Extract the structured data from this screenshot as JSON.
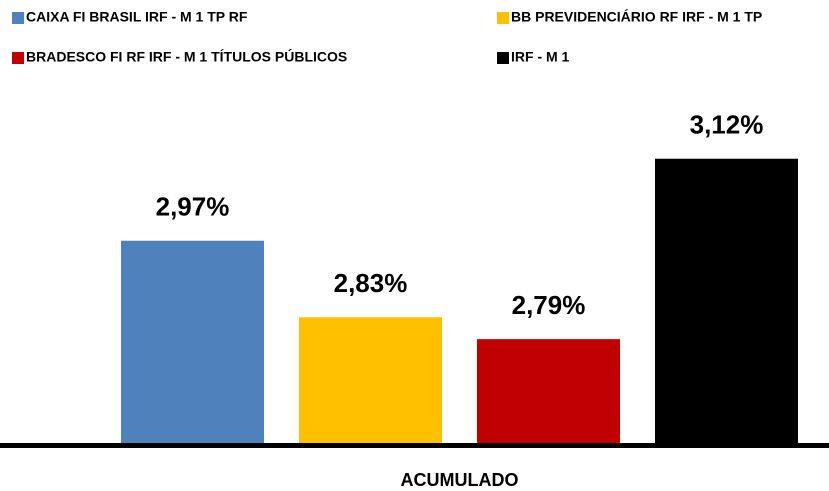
{
  "chart_data": {
    "type": "bar",
    "categories": [
      "ACUMULADO"
    ],
    "series": [
      {
        "name": "CAIXA FI BRASIL IRF - M 1 TP RF",
        "color": "#4f81bd",
        "values": [
          2.97
        ],
        "value_labels": [
          "2,97%"
        ]
      },
      {
        "name": "BB PREVIDENCIÁRIO RF IRF - M 1 TP",
        "color": "#ffc000",
        "values": [
          2.83
        ],
        "value_labels": [
          "2,83%"
        ]
      },
      {
        "name": "BRADESCO FI RF IRF - M 1 TÍTULOS PÚBLICOS",
        "color": "#c00000",
        "values": [
          2.79
        ],
        "value_labels": [
          "2,79%"
        ]
      },
      {
        "name": "IRF - M 1",
        "color": "#000000",
        "values": [
          3.12
        ],
        "value_labels": [
          "3,12%"
        ]
      }
    ],
    "ylim": [
      2.6,
      3.2
    ]
  }
}
